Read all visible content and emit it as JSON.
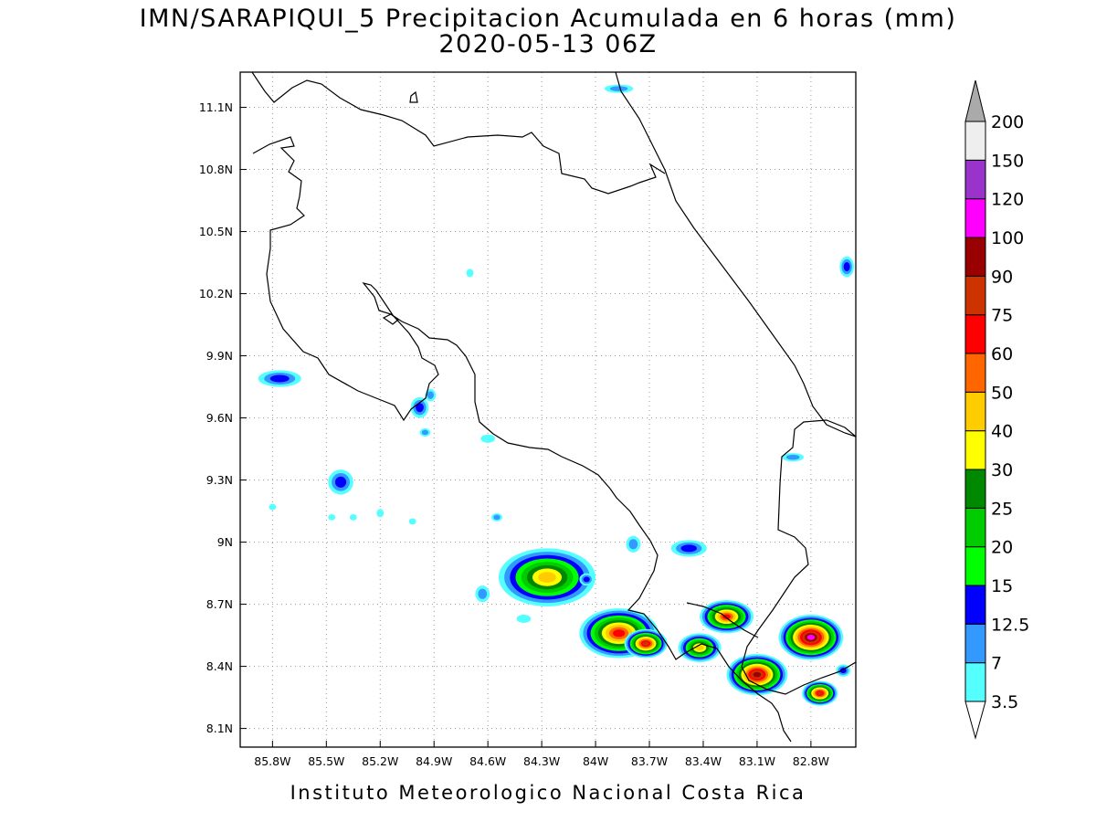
{
  "title": {
    "line1": "IMN/SARAPIQUI_5 Precipitacion Acumulada en 6 horas (mm)",
    "line2": "2020-05-13 06Z"
  },
  "footer": "Instituto Meteorologico Nacional Costa Rica",
  "map": {
    "lon_range": [
      -85.98,
      -82.55
    ],
    "lat_range": [
      8.01,
      11.27
    ],
    "lon_ticks": [
      {
        "value": -85.8,
        "label": "85.8W"
      },
      {
        "value": -85.5,
        "label": "85.5W"
      },
      {
        "value": -85.2,
        "label": "85.2W"
      },
      {
        "value": -84.9,
        "label": "84.9W"
      },
      {
        "value": -84.6,
        "label": "84.6W"
      },
      {
        "value": -84.3,
        "label": "84.3W"
      },
      {
        "value": -84.0,
        "label": "84W"
      },
      {
        "value": -83.7,
        "label": "83.7W"
      },
      {
        "value": -83.4,
        "label": "83.4W"
      },
      {
        "value": -83.1,
        "label": "83.1W"
      },
      {
        "value": -82.8,
        "label": "82.8W"
      }
    ],
    "lat_ticks": [
      {
        "value": 8.1,
        "label": "8.1N"
      },
      {
        "value": 8.4,
        "label": "8.4N"
      },
      {
        "value": 8.7,
        "label": "8.7N"
      },
      {
        "value": 9.0,
        "label": "9N"
      },
      {
        "value": 9.3,
        "label": "9.3N"
      },
      {
        "value": 9.6,
        "label": "9.6N"
      },
      {
        "value": 9.9,
        "label": "9.9N"
      },
      {
        "value": 10.2,
        "label": "10.2N"
      },
      {
        "value": 10.5,
        "label": "10.5N"
      },
      {
        "value": 10.8,
        "label": "10.8N"
      },
      {
        "value": 11.1,
        "label": "11.1N"
      }
    ],
    "grid": true,
    "precip_cells": [
      {
        "lon": -84.27,
        "lat": 8.83,
        "rx": 0.27,
        "ry": 0.14,
        "level": 40
      },
      {
        "lon": -83.87,
        "lat": 8.56,
        "rx": 0.22,
        "ry": 0.12,
        "level": 60
      },
      {
        "lon": -83.72,
        "lat": 8.51,
        "rx": 0.12,
        "ry": 0.07,
        "level": 75
      },
      {
        "lon": -83.27,
        "lat": 8.64,
        "rx": 0.15,
        "ry": 0.08,
        "level": 60
      },
      {
        "lon": -82.8,
        "lat": 8.54,
        "rx": 0.18,
        "ry": 0.11,
        "level": 100
      },
      {
        "lon": -83.1,
        "lat": 8.36,
        "rx": 0.17,
        "ry": 0.1,
        "level": 90
      },
      {
        "lon": -82.75,
        "lat": 8.27,
        "rx": 0.1,
        "ry": 0.06,
        "level": 75
      },
      {
        "lon": -83.42,
        "lat": 8.49,
        "rx": 0.12,
        "ry": 0.07,
        "level": 40
      },
      {
        "lon": -85.76,
        "lat": 9.79,
        "rx": 0.12,
        "ry": 0.04,
        "level": 12.5
      },
      {
        "lon": -85.42,
        "lat": 9.29,
        "rx": 0.07,
        "ry": 0.06,
        "level": 12.5
      },
      {
        "lon": -84.98,
        "lat": 9.65,
        "rx": 0.05,
        "ry": 0.05,
        "level": 12.5
      },
      {
        "lon": -83.48,
        "lat": 8.97,
        "rx": 0.1,
        "ry": 0.04,
        "level": 12.5
      },
      {
        "lon": -82.6,
        "lat": 10.33,
        "rx": 0.04,
        "ry": 0.05,
        "level": 12.5
      },
      {
        "lon": -82.62,
        "lat": 8.38,
        "rx": 0.04,
        "ry": 0.03,
        "level": 12.5
      },
      {
        "lon": -83.87,
        "lat": 11.19,
        "rx": 0.08,
        "ry": 0.02,
        "level": 7
      },
      {
        "lon": -84.92,
        "lat": 9.71,
        "rx": 0.03,
        "ry": 0.03,
        "level": 7
      },
      {
        "lon": -84.6,
        "lat": 9.5,
        "rx": 0.04,
        "ry": 0.02,
        "level": 3.5
      },
      {
        "lon": -84.95,
        "lat": 9.53,
        "rx": 0.03,
        "ry": 0.02,
        "level": 7
      },
      {
        "lon": -82.9,
        "lat": 9.41,
        "rx": 0.06,
        "ry": 0.02,
        "level": 7
      },
      {
        "lon": -83.79,
        "lat": 8.99,
        "rx": 0.04,
        "ry": 0.04,
        "level": 7
      },
      {
        "lon": -84.55,
        "lat": 9.12,
        "rx": 0.03,
        "ry": 0.02,
        "level": 7
      },
      {
        "lon": -84.7,
        "lat": 10.3,
        "rx": 0.02,
        "ry": 0.02,
        "level": 3.5
      },
      {
        "lon": -85.8,
        "lat": 9.17,
        "rx": 0.02,
        "ry": 0.015,
        "level": 3.5
      },
      {
        "lon": -85.2,
        "lat": 9.14,
        "rx": 0.02,
        "ry": 0.02,
        "level": 3.5
      },
      {
        "lon": -85.02,
        "lat": 9.1,
        "rx": 0.02,
        "ry": 0.015,
        "level": 3.5
      },
      {
        "lon": -85.47,
        "lat": 9.12,
        "rx": 0.02,
        "ry": 0.015,
        "level": 3.5
      },
      {
        "lon": -85.35,
        "lat": 9.12,
        "rx": 0.02,
        "ry": 0.015,
        "level": 3.5
      },
      {
        "lon": -84.63,
        "lat": 8.75,
        "rx": 0.04,
        "ry": 0.04,
        "level": 7
      },
      {
        "lon": -84.4,
        "lat": 8.63,
        "rx": 0.04,
        "ry": 0.02,
        "level": 3.5
      },
      {
        "lon": -84.05,
        "lat": 8.82,
        "rx": 0.04,
        "ry": 0.03,
        "level": 12.5
      }
    ]
  },
  "colorbar": {
    "labels": [
      "3.5",
      "7",
      "12.5",
      "15",
      "20",
      "25",
      "30",
      "40",
      "50",
      "60",
      "75",
      "90",
      "100",
      "120",
      "150",
      "200"
    ],
    "colors": [
      "#55ffff",
      "#3399ff",
      "#0000ff",
      "#00ff00",
      "#00cc00",
      "#008800",
      "#ffff00",
      "#ffcc00",
      "#ff6600",
      "#ff0000",
      "#cc3300",
      "#990000",
      "#ff00ff",
      "#9933cc",
      "#eeeeee",
      "#aaaaaa"
    ]
  }
}
